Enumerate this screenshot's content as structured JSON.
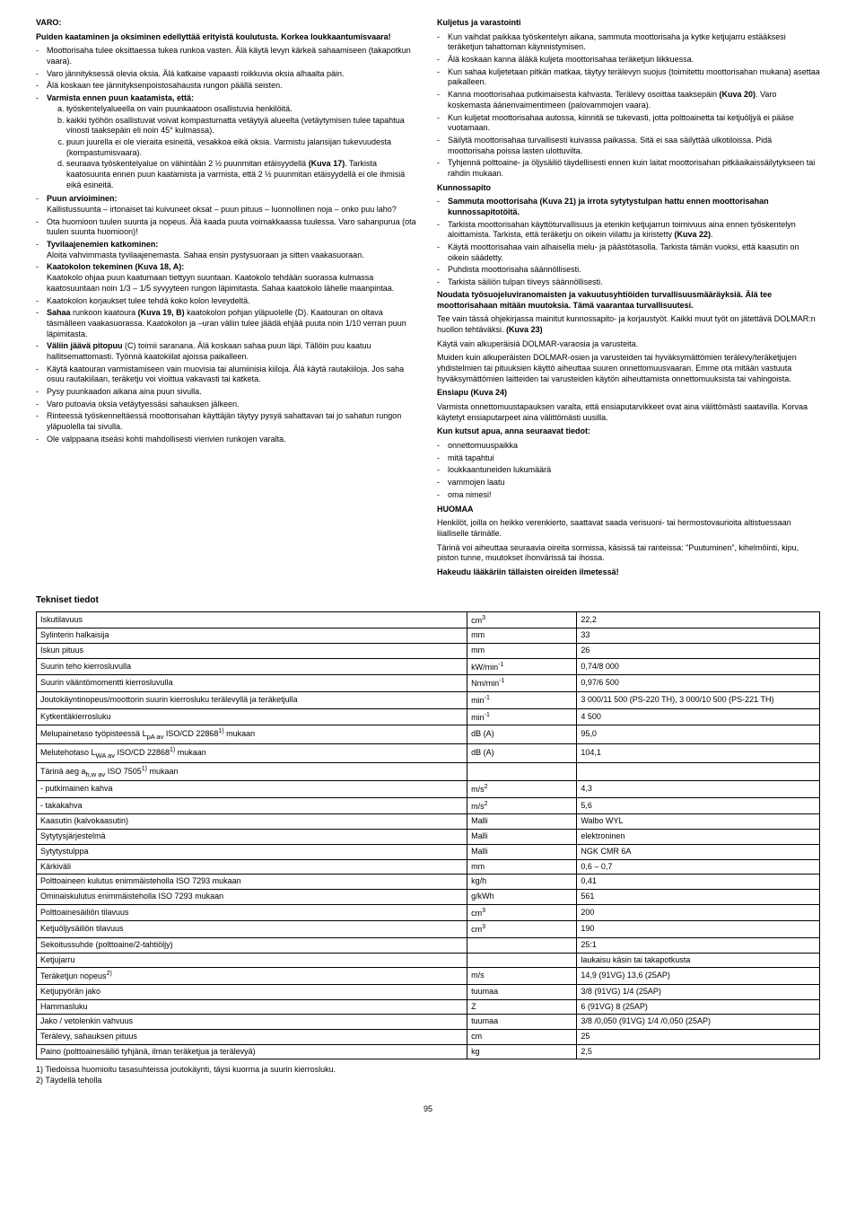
{
  "left_col": {
    "varo_heading": "VARO:",
    "varo_sub": "Puiden kaataminen ja oksiminen edellyttää erityistä koulutusta. Korkea loukkaantumisvaara!",
    "varo_items": [
      "Moottorisaha tulee oksittaessa tukea runkoa vasten. Älä käytä levyn kärkeä sahaamiseen (takapotkun vaara).",
      "Varo jännityksessä olevia oksia. Älä katkaise vapaasti roikkuvia oksia alhaalta päin.",
      "Älä koskaan tee jännityksenpoistosahausta rungon päällä seisten."
    ],
    "varmista_head": "Varmista ennen puun kaatamista, että:",
    "varmista_sub": [
      "työskentelyalueella on vain puunkaatoon osallistuvia henkilöitä.",
      "kaikki työhön osallistuvat voivat kompastumatta vetäytyä alueelta (vetäytymisen tulee tapahtua vinosti taaksepäin eli noin 45° kulmassa).",
      "puun juurella ei ole vieraita esineitä, vesakkoa eikä oksia. Varmistu jalansijan tukevuudesta (kompastumisvaara).",
      "seuraava työskentelyalue on vähintään 2 ½ puunmitan etäisyydellä (Kuva 17). Tarkista kaatosuunta ennen puun kaatamista ja varmista, että 2 ½ puunmitan etäisyydellä ei ole ihmisiä eikä esineitä."
    ],
    "puun_head": "Puun arvioiminen:",
    "puun_text": "Kallistussuunta – irtonaiset tai kuivuneet oksat – puun pituus – luonnollinen noja – onko puu laho?",
    "ota_text": "Ota huomioon tuulen suunta ja nopeus. Älä kaada puuta voimakkaassa tuulessa. Varo sahanpurua (ota tuulen suunta huomioon)!",
    "tyvilaa_head": "Tyvilaajenemien katkominen:",
    "tyvilaa_text": "Aloita vahvimmasta tyvilaajenemasta. Sahaa ensin pystysuoraan ja sitten vaakasuoraan.",
    "kaato_head": "Kaatokolon tekeminen (Kuva 18, A):",
    "kaato_text": "Kaatokolo ohjaa puun kaatumaan tiettyyn suuntaan. Kaatokolo tehdään suorassa kulmassa kaatosuuntaan noin 1/3 – 1/5 syvyyteen rungon läpimitasta. Sahaa kaatokolo lähelle maanpintaa.",
    "kaato_items": [
      "Kaatokolon korjaukset tulee tehdä koko kolon leveydeltä.",
      "Sahaa runkoon kaatoura (Kuva 19, B) kaatokolon pohjan yläpuolelle (D). Kaatouran on oltava täsmälleen vaakasuorassa. Kaatokolon ja –uran väliin tulee jäädä ehjää puuta noin 1/10 verran puun läpimitasta.",
      "Väliin jäävä pitopuu (C) toimii saranana. Älä koskaan sahaa puun läpi. Tällöin puu kaatuu hallitsemattomasti. Työnnä kaatokiilat ajoissa paikalleen.",
      "Käytä kaatouran varmistamiseen vain muovisia tai alumiinisia kiiloja. Älä käytä rautakiiloja. Jos saha osuu rautakiilaan, teräketju voi vioittua vakavasti tai katketa.",
      "Pysy puunkaadon aikana aina puun sivulla.",
      "Varo putoavia oksia vetäytyessäsi sahauksen jälkeen.",
      "Rinteessä työskenneltäessä moottorisahan käyttäjän täytyy pysyä sahattavan tai jo sahatun rungon yläpuolella tai sivulla.",
      "Ole valppaana itseäsi kohti mahdollisesti vierivien runkojen varalta."
    ]
  },
  "right_col": {
    "kuljetus_head": "Kuljetus ja varastointi",
    "kuljetus_items": [
      "Kun vaihdat paikkaa työskentelyn aikana, sammuta moottorisaha ja kytke ketjujarru estääksesi teräketjun tahattoman käynnistymisen.",
      "Älä koskaan kanna äläkä kuljeta moottorisahaa teräketjun liikkuessa.",
      "Kun sahaa kuljetetaan pitkän matkaa, täytyy terälevyn suojus (toimitettu moottorisahan mukana) asettaa paikalleen.",
      "Kanna moottorisahaa putkimaisesta kahvasta. Terälevy osoittaa taaksepäin (Kuva 20). Varo koskemasta äänenvaimentimeen (palovammojen vaara).",
      "Kun kuljetat moottorisahaa autossa, kiinnitä se tukevasti, jotta polttoainetta tai ketjuöljyä ei pääse vuotamaan.",
      "Säilytä moottorisahaa turvallisesti kuivassa paikassa. Sitä ei saa säilyttää ulkotiloissa. Pidä moottorisaha poissa lasten ulottuvilta.",
      "Tyhjennä polttoaine- ja öljysäiliö täydellisesti ennen kuin laitat moottorisahan pitkäaikaissäilytykseen tai rahdin mukaan."
    ],
    "kunnos_head": "Kunnossapito",
    "kunnos_first": "Sammuta moottorisaha (Kuva 21) ja irrota sytytystulpan hattu ennen moottorisahan kunnossapitotöitä.",
    "kunnos_items": [
      "Tarkista moottorisahan käyttöturvallisuus ja etenkin ketjujarrun toimivuus aina ennen työskentelyn aloittamista. Tarkista, että teräketju on oikein viilattu ja kiristetty (Kuva 22).",
      "Käytä moottorisahaa vain alhaisella melu- ja päästötasolla. Tarkista tämän vuoksi, että kaasutin on oikein säädetty.",
      "Puhdista moottorisaha säännöllisesti.",
      "Tarkista säiliön tulpan tiiveys säännöllisesti."
    ],
    "noudata": "Noudata työsuojeluviranomaisten ja vakuutusyhtiöiden turvallisuusmääräyksiä. Älä tee moottorisahaan mitään muutoksia. Tämä vaarantaa turvallisuutesi.",
    "tee_vain": "Tee vain tässä ohjekirjassa mainitut kunnossapito- ja korjaustyöt. Kaikki muut työt on jätettävä DOLMAR:n huollon tehtäväksi. (Kuva 23)",
    "kayta_vain": "Käytä vain alkuperäisiä DOLMAR-varaosia ja varusteita.",
    "muiden": "Muiden kuin alkuperäisten DOLMAR-osien ja varusteiden tai hyväksymättömien terälevy/teräketjujen yhdistelmien tai pituuksien käyttö aiheuttaa suuren onnettomuusvaaran. Emme ota mitään vastuuta hyväksymättömien laitteiden tai varusteiden käytön aiheuttamista onnettomuuksista tai vahingoista.",
    "ensiapu_head": "Ensiapu (Kuva 24)",
    "ensiapu_text": "Varmista onnettomuustapauksen varalta, että ensiaputarvikkeet ovat aina välittömästi saatavilla. Korvaa käytetyt ensiaputarpeet aina välittömästi uusilla.",
    "kun_kutsut_head": "Kun kutsut apua, anna seuraavat tiedot:",
    "kun_kutsut_items": [
      "onnettomuuspaikka",
      "mitä tapahtui",
      "loukkaantuneiden lukumäärä",
      "vammojen laatu",
      "oma nimesi!"
    ],
    "huomaa_head": "HUOMAA",
    "huomaa_p1": "Henkilöt, joilla on heikko verenkierto, saattavat saada verisuoni- tai hermostovaurioita altistuessaan liialliselle tärinälle.",
    "huomaa_p2": "Tärinä voi aiheuttaa seuraavia oireita sormissa, käsissä tai ranteissa: \"Puutuminen\", kihelmöinti, kipu, piston tunne, muutokset ihonvärissä tai ihossa.",
    "hakeudu": "Hakeudu lääkäriin tällaisten oireiden ilmetessä!"
  },
  "tech_title": "Tekniset tiedot",
  "table_rows": [
    {
      "label": "Iskutilavuus",
      "unit": "cm<sup>3</sup>",
      "value": "22,2"
    },
    {
      "label": "Sylinterin halkaisija",
      "unit": "mm",
      "value": "33"
    },
    {
      "label": "Iskun pituus",
      "unit": "mm",
      "value": "26"
    },
    {
      "label": "Suurin teho kierrosluvulla",
      "unit": "kW/min<sup>-1</sup>",
      "value": "0,74/8 000"
    },
    {
      "label": "Suurin vääntömomentti kierrosluvulla",
      "unit": "Nm/min<sup>-1</sup>",
      "value": "0,97/6 500"
    },
    {
      "label": "Joutokäyntinopeus/moottorin suurin kierrosluku terälevyllä ja teräketjulla",
      "unit": "min<sup>-1</sup>",
      "value": "3 000/11 500 (PS-220 TH), 3 000/10 500 (PS-221 TH)"
    },
    {
      "label": "Kytkentäkierrosluku",
      "unit": "min<sup>-1</sup>",
      "value": "4 500"
    },
    {
      "label": "Melupainetaso työpisteessä L<sub>pA av</sub> ISO/CD 22868<sup>1)</sup> mukaan",
      "unit": "dB (A)",
      "value": "95,0"
    },
    {
      "label": "Melutehotaso L<sub>WA av</sub> ISO/CD 22868<sup>1)</sup> mukaan",
      "unit": "dB (A)",
      "value": "104,1"
    },
    {
      "label": "Tärinä aeg a<sub>h,w av</sub> ISO 7505<sup>1)</sup> mukaan",
      "unit": "",
      "value": ""
    },
    {
      "label": "- putkimainen kahva",
      "unit": "m/s<sup>2</sup>",
      "value": "4,3"
    },
    {
      "label": "- takakahva",
      "unit": "m/s<sup>2</sup>",
      "value": "5,6"
    },
    {
      "label": "Kaasutin (kalvokaasutin)",
      "unit": "Malli",
      "value": "Walbo WYL"
    },
    {
      "label": "Sytytysjärjestelmä",
      "unit": "Malli",
      "value": "elektroninen"
    },
    {
      "label": "Sytytystulppa",
      "unit": "Malli",
      "value": "NGK CMR 6A"
    },
    {
      "label": "Kärkiväli",
      "unit": "mm",
      "value": "0,6 – 0,7"
    },
    {
      "label": "Polttoaineen kulutus enimmäisteholla ISO 7293 mukaan",
      "unit": "kg/h",
      "value": "0,41"
    },
    {
      "label": "Ominaiskulutus enimmäisteholla ISO 7293 mukaan",
      "unit": "g/kWh",
      "value": "561"
    },
    {
      "label": "Polttoainesäiliön tilavuus",
      "unit": "cm<sup>3</sup>",
      "value": "200"
    },
    {
      "label": "Ketjuöljysäiliön tilavuus",
      "unit": "cm<sup>3</sup>",
      "value": "190"
    },
    {
      "label": "Sekoitussuhde (polttoaine/2-tahtiöljy)",
      "unit": "",
      "value": "25:1"
    },
    {
      "label": "Ketjujarru",
      "unit": "",
      "value": "laukaisu käsin tai takapotkusta"
    },
    {
      "label": "Teräketjun nopeus<sup>2)</sup>",
      "unit": "m/s",
      "value": "14,9 (91VG) 13,6 (25AP)"
    },
    {
      "label": "Ketjupyörän jako",
      "unit": "tuumaa",
      "value": "3/8 (91VG) 1/4 (25AP)"
    },
    {
      "label": "Hammasluku",
      "unit": "Z",
      "value": "6 (91VG) 8 (25AP)"
    },
    {
      "label": "Jako / vetolenkin vahvuus",
      "unit": "tuumaa",
      "value": "3/8 /0,050 (91VG) 1/4 /0,050 (25AP)"
    },
    {
      "label": "Terälevy, sahauksen pituus",
      "unit": "cm",
      "value": "25"
    },
    {
      "label": "Paino (polttoainesäiliö tyhjänä, ilman teräketjua ja terälevyä)",
      "unit": "kg",
      "value": "2,5"
    }
  ],
  "footnote1": "1) Tiedoissa huomioitu tasasuhteissa joutokäynti, täysi kuorma ja suurin kierrosluku.",
  "footnote2": "2) Täydellä teholla",
  "page_number": "95"
}
